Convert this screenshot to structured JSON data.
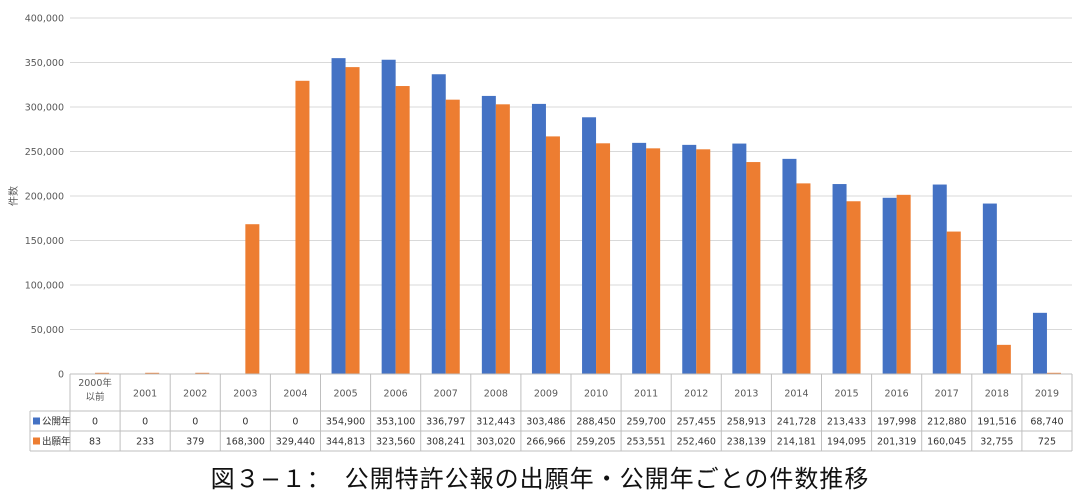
{
  "chart_data": {
    "type": "bar",
    "categories": [
      "2000年\n以前",
      "2001",
      "2002",
      "2003",
      "2004",
      "2005",
      "2006",
      "2007",
      "2008",
      "2009",
      "2010",
      "2011",
      "2012",
      "2013",
      "2014",
      "2015",
      "2016",
      "2017",
      "2018",
      "2019"
    ],
    "series": [
      {
        "name": "公開年",
        "color": "#4472c4",
        "values": [
          0,
          0,
          0,
          0,
          0,
          354900,
          353100,
          336797,
          312443,
          303486,
          288450,
          259700,
          257455,
          258913,
          241728,
          213433,
          197998,
          212880,
          191516,
          68740
        ],
        "labels": [
          "0",
          "0",
          "0",
          "0",
          "0",
          "354,900",
          "353,100",
          "336,797",
          "312,443",
          "303,486",
          "288,450",
          "259,700",
          "257,455",
          "258,913",
          "241,728",
          "213,433",
          "197,998",
          "212,880",
          "191,516",
          "68,740"
        ]
      },
      {
        "name": "出願年",
        "color": "#ed7d31",
        "values": [
          83,
          233,
          379,
          168300,
          329440,
          344813,
          323560,
          308241,
          303020,
          266966,
          259205,
          253551,
          252460,
          238139,
          214181,
          194095,
          201319,
          160045,
          32755,
          725
        ],
        "labels": [
          "83",
          "233",
          "379",
          "168,300",
          "329,440",
          "344,813",
          "323,560",
          "308,241",
          "303,020",
          "266,966",
          "259,205",
          "253,551",
          "252,460",
          "238,139",
          "214,181",
          "194,095",
          "201,319",
          "160,045",
          "32,755",
          "725"
        ]
      }
    ],
    "ylabel": "件数",
    "ylim": [
      0,
      400000
    ],
    "yticks": [
      0,
      50000,
      100000,
      150000,
      200000,
      250000,
      300000,
      350000,
      400000
    ],
    "ytick_labels": [
      "0",
      "50,000",
      "100,000",
      "150,000",
      "200,000",
      "250,000",
      "300,000",
      "350,000",
      "400,000"
    ],
    "grid": true,
    "data_table": true
  },
  "caption": "図３−１：　公開特許公報の出願年・公開年ごとの件数推移"
}
